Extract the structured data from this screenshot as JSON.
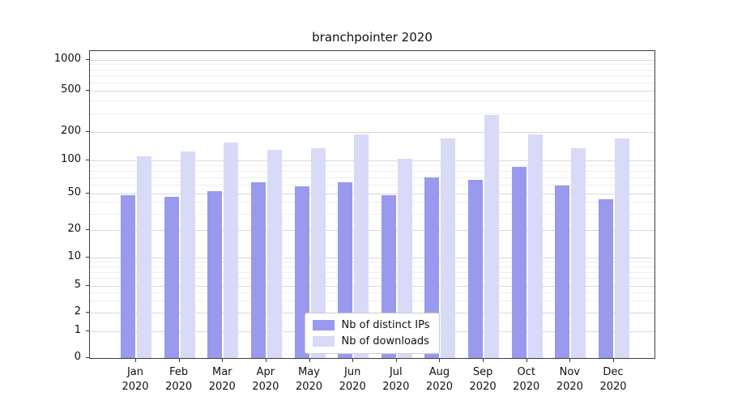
{
  "chart_data": {
    "type": "bar",
    "title": "branchpointer 2020",
    "categories": [
      "Jan",
      "Feb",
      "Mar",
      "Apr",
      "May",
      "Jun",
      "Jul",
      "Aug",
      "Sep",
      "Oct",
      "Nov",
      "Dec"
    ],
    "x_year": "2020",
    "series": [
      {
        "name": "Nb of distinct IPs",
        "color": "#9999ee",
        "values": [
          48,
          46,
          53,
          63,
          58,
          63,
          48,
          70,
          67,
          88,
          59,
          43
        ]
      },
      {
        "name": "Nb of downloads",
        "color": "#d9d9f8",
        "values": [
          110,
          125,
          155,
          130,
          135,
          190,
          105,
          170,
          290,
          190,
          135,
          170
        ]
      }
    ],
    "yticks": [
      0,
      1,
      2,
      5,
      10,
      20,
      50,
      100,
      200,
      500,
      1000
    ],
    "ylim": [
      0,
      1250
    ],
    "scale": "symlog",
    "grid": "horizontal",
    "legend_position": "lower center"
  }
}
